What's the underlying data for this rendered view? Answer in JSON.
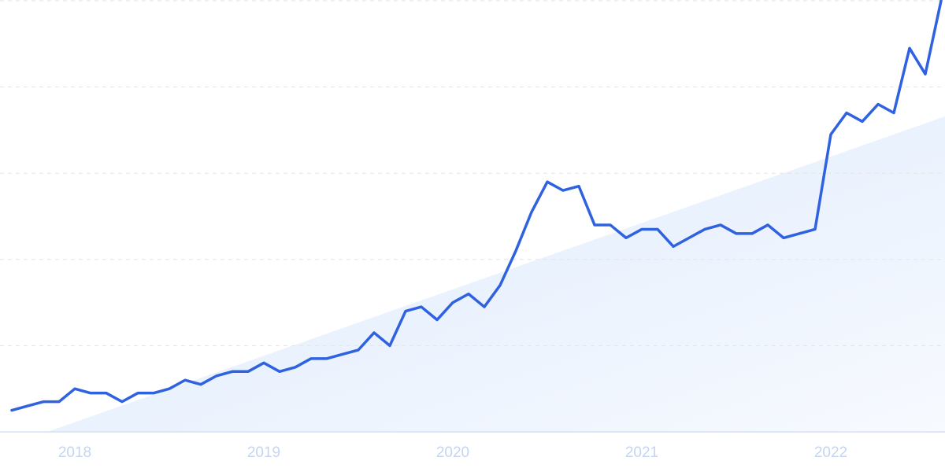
{
  "chart_data": {
    "type": "line",
    "categories": [
      null,
      null,
      null,
      null,
      "2018",
      null,
      null,
      null,
      null,
      null,
      null,
      null,
      null,
      null,
      null,
      null,
      "2019",
      null,
      null,
      null,
      null,
      null,
      null,
      null,
      null,
      null,
      null,
      null,
      "2020",
      null,
      null,
      null,
      null,
      null,
      null,
      null,
      null,
      null,
      null,
      null,
      "2021",
      null,
      null,
      null,
      null,
      null,
      null,
      null,
      null,
      null,
      null,
      null,
      "2022",
      null,
      null,
      null,
      null,
      null,
      null,
      null
    ],
    "values": [
      5,
      6,
      7,
      7,
      10,
      9,
      9,
      7,
      9,
      9,
      10,
      12,
      11,
      13,
      14,
      14,
      16,
      14,
      15,
      17,
      17,
      18,
      19,
      23,
      20,
      28,
      29,
      26,
      30,
      32,
      29,
      34,
      42,
      51,
      58,
      56,
      57,
      48,
      48,
      45,
      47,
      47,
      43,
      45,
      47,
      48,
      46,
      46,
      48,
      45,
      46,
      47,
      69,
      74,
      72,
      76,
      74,
      89,
      83,
      100
    ],
    "color": "#2f62e0",
    "ylim": [
      0,
      100
    ],
    "yticks": [
      0,
      20,
      40,
      60,
      80,
      100
    ],
    "grid": true
  }
}
